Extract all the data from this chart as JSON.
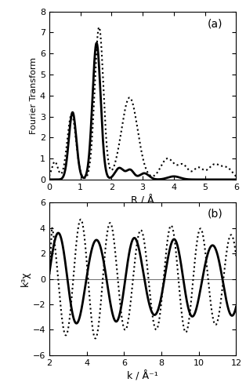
{
  "panel_a": {
    "label": "(a)",
    "xlabel": "R / Å",
    "ylabel": "Fourier Transform",
    "xlim": [
      0,
      6
    ],
    "ylim": [
      0,
      8
    ],
    "xticks": [
      0,
      1,
      2,
      3,
      4,
      5,
      6
    ],
    "yticks": [
      0,
      1,
      2,
      3,
      4,
      5,
      6,
      7,
      8
    ]
  },
  "panel_b": {
    "label": "(b)",
    "xlabel": "k / Å⁻¹",
    "ylabel": "k³χ",
    "xlim": [
      2,
      12
    ],
    "ylim": [
      -6,
      6
    ],
    "xticks": [
      2,
      4,
      6,
      8,
      10,
      12
    ],
    "yticks": [
      -6,
      -4,
      -2,
      0,
      2,
      4,
      6
    ]
  },
  "line_color_solid": "#000000",
  "line_color_dotted": "#000000",
  "linewidth_solid": 2.0,
  "linewidth_dotted": 1.5,
  "bg_color": "#ffffff"
}
